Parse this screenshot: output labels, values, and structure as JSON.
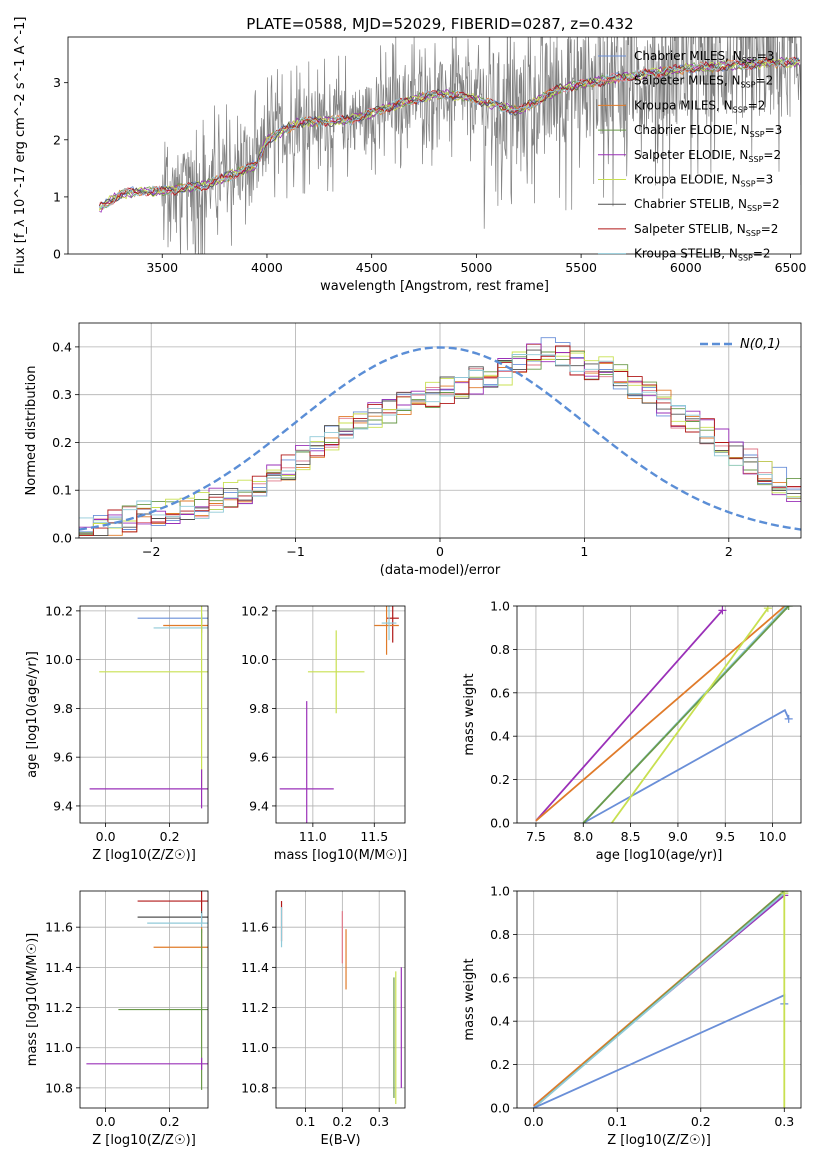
{
  "title": "PLATE=0588, MJD=52029, FIBERID=0287, z=0.432",
  "colors": {
    "chabrier_miles": "#6a8fd8",
    "salpeter_miles": "#e07a8a",
    "kroupa_miles": "#e07b2a",
    "chabrier_elodie": "#6a9a4a",
    "salpeter_elodie": "#9a30b8",
    "kroupa_elodie": "#c8e050",
    "chabrier_stelib": "#505050",
    "salpeter_stelib": "#b01818",
    "kroupa_stelib": "#90cad8",
    "observed": "#808080",
    "gauss": "#5b8ed6"
  },
  "chart_data": [
    {
      "id": "spectrum",
      "type": "line",
      "xlabel": "wavelength [Angstrom, rest frame]",
      "ylabel": "Flux [f_λ 10^-17 erg cm^-2 s^-1 A^-1]",
      "xlim": [
        3050,
        6550
      ],
      "ylim": [
        0,
        3.8
      ],
      "xticks": [
        3500,
        4000,
        4500,
        5000,
        5500,
        6000,
        6500
      ],
      "yticks": [
        0,
        1,
        2,
        3
      ],
      "legend_position": "top-right",
      "legend": [
        {
          "label": "Chabrier MILES, N",
          "sub": "SSP",
          "n": "=3",
          "color": "#6a8fd8"
        },
        {
          "label": "Salpeter MILES, N",
          "sub": "SSP",
          "n": "=2",
          "color": "#e07a8a"
        },
        {
          "label": "Kroupa MILES, N",
          "sub": "SSP",
          "n": "=2",
          "color": "#e07b2a"
        },
        {
          "label": "Chabrier ELODIE, N",
          "sub": "SSP",
          "n": "=3",
          "color": "#6a9a4a"
        },
        {
          "label": "Salpeter ELODIE, N",
          "sub": "SSP",
          "n": "=2",
          "color": "#9a30b8"
        },
        {
          "label": "Kroupa ELODIE, N",
          "sub": "SSP",
          "n": "=3",
          "color": "#c8e050"
        },
        {
          "label": "Chabrier STELIB, N",
          "sub": "SSP",
          "n": "=2",
          "color": "#505050"
        },
        {
          "label": "Salpeter STELIB, N",
          "sub": "SSP",
          "n": "=2",
          "color": "#b01818"
        },
        {
          "label": "Kroupa STELIB, N",
          "sub": "SSP",
          "n": "=2",
          "color": "#90cad8"
        }
      ],
      "model_continuum": [
        [
          3200,
          0.8
        ],
        [
          3300,
          1.05
        ],
        [
          3400,
          1.1
        ],
        [
          3500,
          1.1
        ],
        [
          3700,
          1.2
        ],
        [
          3950,
          1.55
        ],
        [
          4000,
          2.0
        ],
        [
          4150,
          2.3
        ],
        [
          4400,
          2.35
        ],
        [
          4600,
          2.6
        ],
        [
          4800,
          2.8
        ],
        [
          4950,
          2.75
        ],
        [
          5200,
          2.5
        ],
        [
          5400,
          2.9
        ],
        [
          5700,
          3.1
        ],
        [
          6000,
          3.25
        ],
        [
          6400,
          3.35
        ],
        [
          6550,
          3.35
        ]
      ],
      "observed_noise_start": 3500
    },
    {
      "id": "residual-hist",
      "type": "line",
      "xlabel": "(data-model)/error",
      "ylabel": "Normed distribution",
      "xlim": [
        -2.5,
        2.5
      ],
      "ylim": [
        0,
        0.45
      ],
      "xticks": [
        -2,
        -1,
        0,
        1,
        2
      ],
      "yticks": [
        0.0,
        0.1,
        0.2,
        0.3,
        0.4
      ],
      "legend_position": "top-right",
      "gauss_label": "N(0,1)",
      "bin_width": 0.1,
      "hist_profile": [
        0.02,
        0.025,
        0.03,
        0.04,
        0.05,
        0.055,
        0.06,
        0.065,
        0.07,
        0.08,
        0.09,
        0.1,
        0.11,
        0.13,
        0.15,
        0.17,
        0.19,
        0.21,
        0.23,
        0.25,
        0.26,
        0.27,
        0.28,
        0.29,
        0.3,
        0.31,
        0.32,
        0.33,
        0.34,
        0.35,
        0.37,
        0.38,
        0.39,
        0.38,
        0.37,
        0.36,
        0.35,
        0.34,
        0.32,
        0.3,
        0.28,
        0.26,
        0.24,
        0.22,
        0.2,
        0.18,
        0.16,
        0.14,
        0.12,
        0.1
      ]
    },
    {
      "id": "age-vs-z",
      "type": "scatter",
      "xlabel": "Z [log10(Z/Z☉)]",
      "ylabel": "age  [log10(age/yr)]",
      "xlim": [
        -0.08,
        0.32
      ],
      "ylim": [
        9.33,
        10.22
      ],
      "xticks": [
        0.0,
        0.2
      ],
      "yticks": [
        9.4,
        9.6,
        9.8,
        10.0,
        10.2
      ],
      "points": [
        {
          "x": 0.3,
          "y": 10.17,
          "xerr": 0.2,
          "yerr": 0.02,
          "color": "#6a8fd8"
        },
        {
          "x": 0.3,
          "y": 10.14,
          "xerr": 0.12,
          "yerr": 0.03,
          "color": "#e07b2a"
        },
        {
          "x": 0.3,
          "y": 10.13,
          "xerr": 0.15,
          "yerr": 0.05,
          "color": "#90cad8"
        },
        {
          "x": 0.3,
          "y": 9.95,
          "xerr": 0.32,
          "yerr": 0.47,
          "color": "#c8e050"
        },
        {
          "x": 0.3,
          "y": 9.47,
          "xerr": 0.35,
          "yerr": 0.08,
          "color": "#9a30b8"
        }
      ]
    },
    {
      "id": "age-vs-mass",
      "type": "scatter",
      "xlabel": "mass [log10(M/M☉)]",
      "ylabel": "",
      "xlim": [
        10.7,
        11.75
      ],
      "ylim": [
        9.33,
        10.22
      ],
      "xticks": [
        11.0,
        11.5
      ],
      "yticks": [
        9.4,
        9.6,
        9.8,
        10.0,
        10.2
      ],
      "points": [
        {
          "x": 11.65,
          "y": 10.17,
          "xerr": 0.05,
          "yerr": 0.1,
          "color": "#b01818"
        },
        {
          "x": 11.6,
          "y": 10.14,
          "xerr": 0.1,
          "yerr": 0.12,
          "color": "#e07b2a"
        },
        {
          "x": 11.62,
          "y": 10.15,
          "xerr": 0.06,
          "yerr": 0.07,
          "color": "#90cad8"
        },
        {
          "x": 11.19,
          "y": 9.95,
          "xerr": 0.23,
          "yerr": 0.17,
          "color": "#c8e050"
        },
        {
          "x": 10.95,
          "y": 9.47,
          "xerr": 0.22,
          "yerr": 0.36,
          "color": "#9a30b8"
        }
      ]
    },
    {
      "id": "mass-weight-vs-age",
      "type": "line",
      "xlabel": "age  [log10(age/yr)]",
      "ylabel": "mass weight",
      "xlim": [
        7.3,
        10.3
      ],
      "ylim": [
        0.0,
        1.0
      ],
      "xticks": [
        7.5,
        8.0,
        8.5,
        9.0,
        9.5,
        10.0
      ],
      "yticks": [
        0.0,
        0.2,
        0.4,
        0.6,
        0.8,
        1.0
      ],
      "series": [
        {
          "color": "#9a30b8",
          "x": [
            7.5,
            9.47
          ],
          "y": [
            0.01,
            0.98
          ]
        },
        {
          "color": "#e07b2a",
          "x": [
            7.5,
            10.13
          ],
          "y": [
            0.01,
            1.0
          ]
        },
        {
          "color": "#6a8fd8",
          "x": [
            8.0,
            10.13,
            10.17
          ],
          "y": [
            0.0,
            0.52,
            0.48
          ]
        },
        {
          "color": "#90cad8",
          "x": [
            8.0,
            10.15
          ],
          "y": [
            0.0,
            1.0
          ]
        },
        {
          "color": "#6a9a4a",
          "x": [
            8.0,
            10.17
          ],
          "y": [
            0.0,
            1.0
          ]
        },
        {
          "color": "#c8e050",
          "x": [
            8.3,
            9.95
          ],
          "y": [
            0.0,
            0.99
          ]
        }
      ]
    },
    {
      "id": "mass-vs-z",
      "type": "scatter",
      "xlabel": "Z [log10(Z/Z☉)]",
      "ylabel": "mass [log10(M/M☉)]",
      "xlim": [
        -0.08,
        0.32
      ],
      "ylim": [
        10.7,
        11.78
      ],
      "xticks": [
        0.0,
        0.2
      ],
      "yticks": [
        10.8,
        11.0,
        11.2,
        11.4,
        11.6
      ],
      "points": [
        {
          "x": 0.3,
          "y": 11.73,
          "xerr": 0.2,
          "yerr": 0.05,
          "color": "#b01818"
        },
        {
          "x": 0.3,
          "y": 11.65,
          "xerr": 0.2,
          "yerr": 0.03,
          "color": "#505050"
        },
        {
          "x": 0.3,
          "y": 11.62,
          "xerr": 0.17,
          "yerr": 0.05,
          "color": "#90cad8"
        },
        {
          "x": 0.3,
          "y": 11.5,
          "xerr": 0.15,
          "yerr": 0.1,
          "color": "#e07b2a"
        },
        {
          "x": 0.3,
          "y": 11.19,
          "xerr": 0.26,
          "yerr": 0.4,
          "color": "#6a9a4a"
        },
        {
          "x": 0.3,
          "y": 10.92,
          "xerr": 0.36,
          "yerr": 0.03,
          "color": "#9a30b8"
        }
      ]
    },
    {
      "id": "mass-vs-ebv",
      "type": "scatter",
      "xlabel": "E(B-V)",
      "ylabel": "",
      "xlim": [
        0.02,
        0.37
      ],
      "ylim": [
        10.7,
        11.78
      ],
      "xticks": [
        0.1,
        0.2,
        0.3
      ],
      "yticks": [
        10.8,
        11.0,
        11.2,
        11.4,
        11.6
      ],
      "points": [
        {
          "x": 0.035,
          "y": 11.63,
          "yerr": 0.1,
          "color": "#b01818"
        },
        {
          "x": 0.035,
          "y": 11.6,
          "yerr": 0.1,
          "color": "#90cad8"
        },
        {
          "x": 0.2,
          "y": 11.55,
          "yerr": 0.13,
          "color": "#e07a8a"
        },
        {
          "x": 0.21,
          "y": 11.44,
          "yerr": 0.15,
          "color": "#e07b2a"
        },
        {
          "x": 0.34,
          "y": 11.05,
          "yerr": 0.3,
          "color": "#6a9a4a"
        },
        {
          "x": 0.345,
          "y": 11.05,
          "yerr": 0.33,
          "color": "#c8e050"
        },
        {
          "x": 0.36,
          "y": 11.1,
          "yerr": 0.3,
          "color": "#9a30b8"
        }
      ]
    },
    {
      "id": "mass-weight-vs-z",
      "type": "line",
      "xlabel": "Z [log10(Z/Z☉)]",
      "ylabel": "mass weight",
      "xlim": [
        -0.02,
        0.32
      ],
      "ylim": [
        0.0,
        1.0
      ],
      "xticks": [
        0.0,
        0.1,
        0.2,
        0.3
      ],
      "yticks": [
        0.0,
        0.2,
        0.4,
        0.6,
        0.8,
        1.0
      ],
      "series": [
        {
          "color": "#9a30b8",
          "x": [
            0.0,
            0.3
          ],
          "y": [
            0.01,
            0.98
          ]
        },
        {
          "color": "#e07b2a",
          "x": [
            0.0,
            0.3
          ],
          "y": [
            0.01,
            1.0
          ]
        },
        {
          "color": "#6a9a4a",
          "x": [
            0.0,
            0.3
          ],
          "y": [
            0.0,
            1.0
          ]
        },
        {
          "color": "#90cad8",
          "x": [
            0.0,
            0.3
          ],
          "y": [
            0.0,
            0.99
          ]
        },
        {
          "color": "#6a8fd8",
          "x": [
            0.0,
            0.3,
            0.3
          ],
          "y": [
            0.0,
            0.52,
            0.48
          ]
        },
        {
          "color": "#c8e050",
          "x": [
            0.3,
            0.3
          ],
          "y": [
            0.0,
            0.99
          ]
        }
      ]
    }
  ]
}
